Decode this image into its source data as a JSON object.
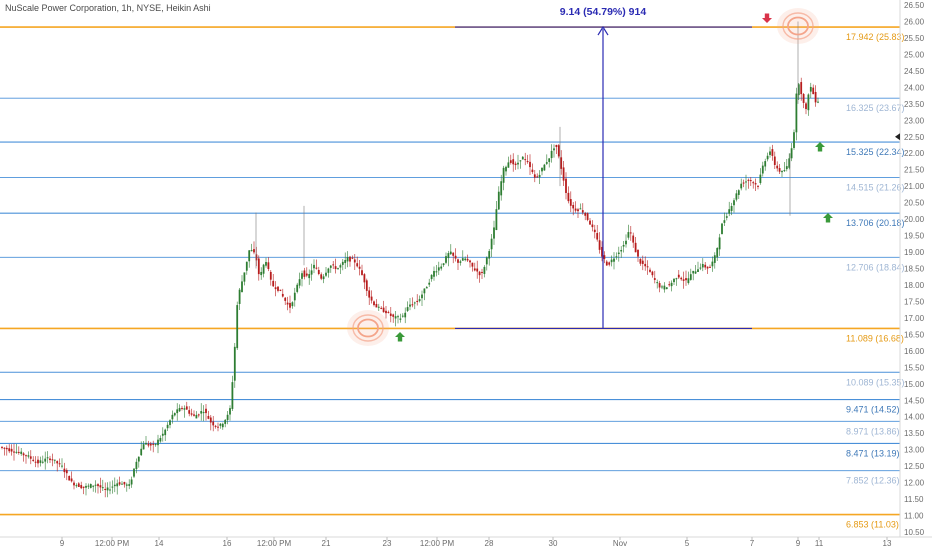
{
  "header": {
    "title": "NuScale Power Corporation, 1h, NYSE, Heikin Ashi"
  },
  "colors": {
    "bull": "#2e7d32",
    "bear": "#b71c1c",
    "orange_level": "#f5a623",
    "blue_level": "#4a90d9",
    "light_label": "#9fb6d4",
    "measure": "#2b2bb3",
    "arrow_up": "#3a9a3a",
    "arrow_down": "#d9334a",
    "circle": "#f4a48a"
  },
  "chart_data": {
    "type": "candlestick",
    "title": "NuScale Power Corporation, 1h, NYSE, Heikin Ashi",
    "ylim": [
      10.5,
      26.5
    ],
    "y_ticks": [
      "26.50",
      "26.00",
      "25.50",
      "25.00",
      "24.50",
      "24.00",
      "23.50",
      "23.00",
      "22.50",
      "22.00",
      "21.50",
      "21.00",
      "20.50",
      "20.00",
      "19.50",
      "19.00",
      "18.50",
      "18.00",
      "17.50",
      "17.00",
      "16.50",
      "16.00",
      "15.50",
      "15.00",
      "14.50",
      "14.00",
      "13.50",
      "13.00",
      "12.50",
      "12.00",
      "11.50",
      "11.00",
      "10.50"
    ],
    "x_ticks": [
      "9",
      "12:00 PM",
      "14",
      "16",
      "12:00 PM",
      "21",
      "23",
      "12:00 PM",
      "28",
      "30",
      "Nov",
      "5",
      "7",
      "9",
      "11",
      "13"
    ],
    "current_price": 22.5,
    "levels": [
      {
        "label": "17.942 (25.83)",
        "price": 25.83,
        "style": "orange"
      },
      {
        "label": "16.325 (23.67)",
        "price": 23.67,
        "style": "light"
      },
      {
        "label": "15.325 (22.34)",
        "price": 22.34,
        "style": "blue"
      },
      {
        "label": "14.515 (21.26)",
        "price": 21.26,
        "style": "light"
      },
      {
        "label": "13.706 (20.18)",
        "price": 20.18,
        "style": "blue"
      },
      {
        "label": "12.706 (18.84)",
        "price": 18.84,
        "style": "light"
      },
      {
        "label": "11.089 (16.68)",
        "price": 16.68,
        "style": "orange"
      },
      {
        "label": "10.089 (15.35)",
        "price": 15.35,
        "style": "light"
      },
      {
        "label": "9.471 (14.52)",
        "price": 14.52,
        "style": "blue"
      },
      {
        "label": "8.971 (13.86)",
        "price": 13.86,
        "style": "light"
      },
      {
        "label": "8.471 (13.19)",
        "price": 13.19,
        "style": "blue"
      },
      {
        "label": "7.852 (12.36)",
        "price": 12.36,
        "style": "light"
      },
      {
        "label": "6.853 (11.03)",
        "price": 11.03,
        "style": "orange"
      }
    ],
    "measure": {
      "label": "9.14 (54.79%) 914",
      "from_price": 16.68,
      "to_price": 25.83
    },
    "series_path": [
      [
        0,
        13.1
      ],
      [
        18,
        12.95
      ],
      [
        30,
        12.8
      ],
      [
        40,
        12.6
      ],
      [
        52,
        12.75
      ],
      [
        64,
        12.5
      ],
      [
        74,
        12.0
      ],
      [
        86,
        11.85
      ],
      [
        98,
        11.95
      ],
      [
        108,
        11.75
      ],
      [
        120,
        12.0
      ],
      [
        132,
        11.9
      ],
      [
        138,
        12.6
      ],
      [
        146,
        13.2
      ],
      [
        156,
        13.1
      ],
      [
        166,
        13.5
      ],
      [
        176,
        14.1
      ],
      [
        186,
        14.3
      ],
      [
        196,
        14.0
      ],
      [
        206,
        14.2
      ],
      [
        214,
        13.8
      ],
      [
        222,
        13.7
      ],
      [
        232,
        14.1
      ],
      [
        236,
        15.5
      ],
      [
        240,
        17.6
      ],
      [
        246,
        18.3
      ],
      [
        252,
        19.1
      ],
      [
        258,
        18.9
      ],
      [
        262,
        18.2
      ],
      [
        268,
        18.8
      ],
      [
        274,
        18.0
      ],
      [
        280,
        17.9
      ],
      [
        286,
        17.6
      ],
      [
        292,
        17.3
      ],
      [
        298,
        17.8
      ],
      [
        304,
        18.4
      ],
      [
        310,
        18.2
      ],
      [
        316,
        18.6
      ],
      [
        324,
        18.2
      ],
      [
        332,
        18.6
      ],
      [
        340,
        18.5
      ],
      [
        350,
        18.8
      ],
      [
        358,
        18.7
      ],
      [
        366,
        18.2
      ],
      [
        372,
        17.6
      ],
      [
        380,
        17.3
      ],
      [
        388,
        17.2
      ],
      [
        396,
        17.0
      ],
      [
        404,
        17.0
      ],
      [
        412,
        17.4
      ],
      [
        420,
        17.5
      ],
      [
        428,
        17.9
      ],
      [
        436,
        18.4
      ],
      [
        444,
        18.6
      ],
      [
        452,
        19.0
      ],
      [
        460,
        18.7
      ],
      [
        468,
        18.8
      ],
      [
        476,
        18.5
      ],
      [
        484,
        18.3
      ],
      [
        490,
        18.9
      ],
      [
        496,
        19.6
      ],
      [
        500,
        20.6
      ],
      [
        506,
        21.5
      ],
      [
        512,
        21.8
      ],
      [
        518,
        21.6
      ],
      [
        524,
        21.9
      ],
      [
        530,
        21.7
      ],
      [
        538,
        21.2
      ],
      [
        546,
        21.6
      ],
      [
        552,
        21.9
      ],
      [
        558,
        22.3
      ],
      [
        564,
        21.5
      ],
      [
        570,
        20.6
      ],
      [
        576,
        20.3
      ],
      [
        584,
        20.3
      ],
      [
        592,
        19.9
      ],
      [
        598,
        19.5
      ],
      [
        604,
        18.9
      ],
      [
        610,
        18.6
      ],
      [
        618,
        18.9
      ],
      [
        626,
        19.2
      ],
      [
        632,
        19.7
      ],
      [
        636,
        19.2
      ],
      [
        642,
        18.7
      ],
      [
        650,
        18.5
      ],
      [
        658,
        18.1
      ],
      [
        664,
        17.9
      ],
      [
        672,
        18.0
      ],
      [
        680,
        18.3
      ],
      [
        688,
        18.1
      ],
      [
        696,
        18.4
      ],
      [
        704,
        18.6
      ],
      [
        712,
        18.5
      ],
      [
        718,
        18.9
      ],
      [
        724,
        19.8
      ],
      [
        730,
        20.2
      ],
      [
        738,
        20.7
      ],
      [
        744,
        21.1
      ],
      [
        752,
        21.2
      ],
      [
        760,
        21.0
      ],
      [
        766,
        21.7
      ],
      [
        772,
        22.1
      ],
      [
        778,
        21.6
      ],
      [
        784,
        21.4
      ],
      [
        790,
        21.6
      ],
      [
        796,
        22.5
      ],
      [
        800,
        24.3
      ],
      [
        804,
        23.8
      ],
      [
        808,
        23.2
      ],
      [
        812,
        24.1
      ],
      [
        818,
        23.6
      ]
    ]
  }
}
